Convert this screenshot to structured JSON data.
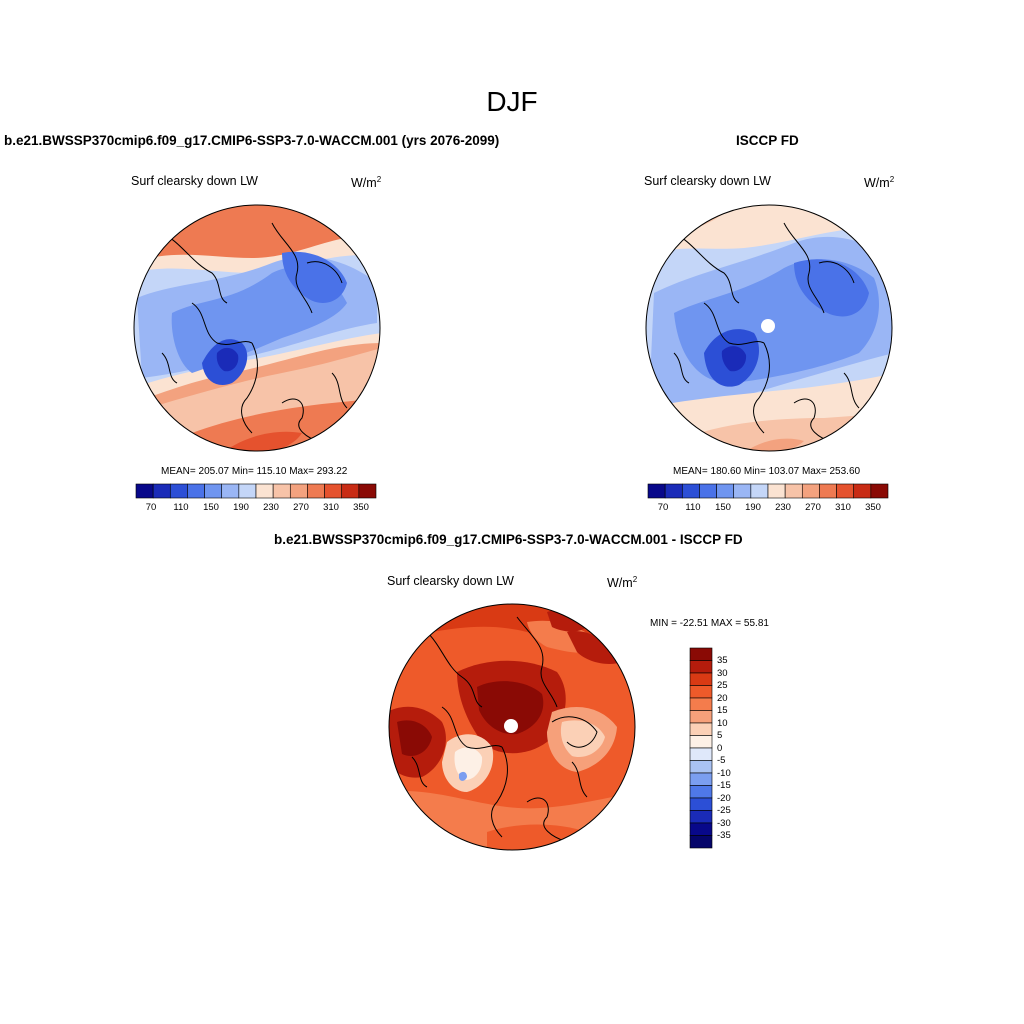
{
  "page_title": "DJF",
  "panels": [
    {
      "title": "b.e21.BWSSP370cmip6.f09_g17.CMIP6-SSP3-7.0-WACCM.001 (yrs 2076-2099)",
      "variable": "Surf clearsky down LW",
      "units_base": "W/m",
      "units_exp": "2",
      "stats": "MEAN= 205.07  Min= 115.10  Max= 293.22"
    },
    {
      "title": "ISCCP FD",
      "variable": "Surf clearsky down LW",
      "units_base": "W/m",
      "units_exp": "2",
      "stats": "MEAN= 180.60  Min= 103.07  Max= 253.60"
    },
    {
      "title": "b.e21.BWSSP370cmip6.f09_g17.CMIP6-SSP3-7.0-WACCM.001 - ISCCP FD",
      "variable": "Surf clearsky down LW",
      "units_base": "W/m",
      "units_exp": "2",
      "stats": "MIN = -22.51 MAX =  55.81"
    }
  ],
  "colorbar_main": {
    "labels": [
      "70",
      "110",
      "150",
      "190",
      "230",
      "270",
      "310",
      "350"
    ],
    "colors": [
      "#08088a",
      "#1a2bb8",
      "#2c4fd6",
      "#4a72e8",
      "#6f95f0",
      "#9ab6f5",
      "#c4d6f8",
      "#fbe3d2",
      "#f7c3a8",
      "#f3a27f",
      "#ee7a52",
      "#e5522e",
      "#c82b14",
      "#8a0a05"
    ]
  },
  "colorbar_diff": {
    "labels": [
      "35",
      "30",
      "25",
      "20",
      "15",
      "10",
      "5",
      "0",
      "-5",
      "-10",
      "-15",
      "-20",
      "-25",
      "-30",
      "-35"
    ],
    "colors": [
      "#8a0a05",
      "#b51c0c",
      "#d93a14",
      "#ee5a2a",
      "#f47c4c",
      "#f6a07a",
      "#fbd0b6",
      "#fdf0e6",
      "#dfe8fa",
      "#a9c2f3",
      "#7b9ef0",
      "#4f78e8",
      "#2c4fd6",
      "#1a2bb8",
      "#08088a",
      "#05056a"
    ]
  },
  "chart_data": {
    "type": "map",
    "season": "DJF",
    "projection": "north polar stereographic",
    "maps": [
      {
        "name": "model",
        "mean": 205.07,
        "min": 115.1,
        "max": 293.22,
        "levels": [
          70,
          90,
          110,
          130,
          150,
          170,
          190,
          210,
          230,
          250,
          270,
          290,
          310,
          330,
          350
        ]
      },
      {
        "name": "ISCCP FD",
        "mean": 180.6,
        "min": 103.07,
        "max": 253.6,
        "levels": [
          70,
          90,
          110,
          130,
          150,
          170,
          190,
          210,
          230,
          250,
          270,
          290,
          310,
          330,
          350
        ]
      },
      {
        "name": "model - ISCCP FD",
        "min": -22.51,
        "max": 55.81,
        "levels": [
          -35,
          -30,
          -25,
          -20,
          -15,
          -10,
          -5,
          0,
          5,
          10,
          15,
          20,
          25,
          30,
          35
        ]
      }
    ]
  }
}
